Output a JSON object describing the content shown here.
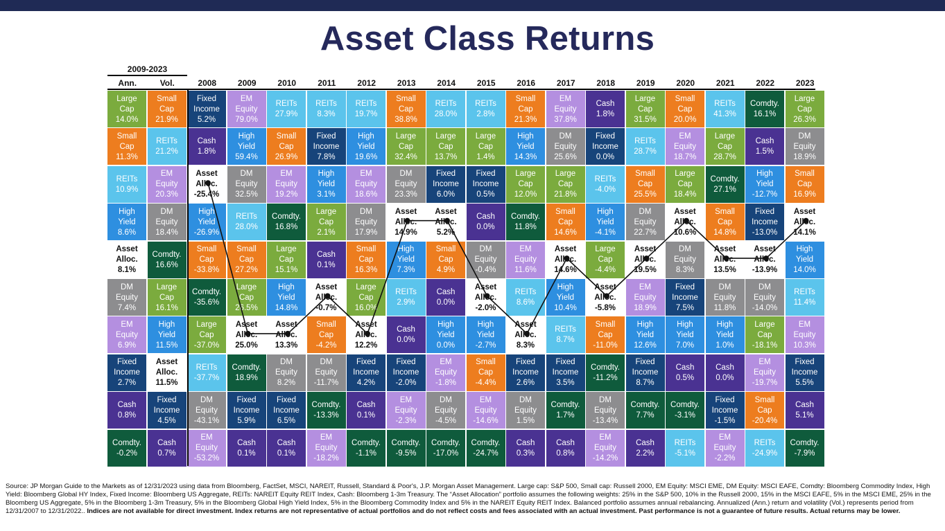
{
  "title": "Asset Class Returns",
  "colors": {
    "Large Cap": "#7bab3e",
    "Small Cap": "#ed7d1f",
    "REITs": "#5bc4ec",
    "High Yield": "#2e8fe0",
    "Asset Alloc.": "#ffffff",
    "DM Equity": "#8d8d8f",
    "EM Equity": "#b48fe0",
    "Fixed Income": "#17447a",
    "Cash": "#4a3292",
    "Comdty.": "#0f5b3c"
  },
  "chart_data": {
    "type": "table",
    "title": "Asset Class Returns",
    "summary_header": "2009-2023",
    "summary_columns": [
      "Ann.",
      "Vol."
    ],
    "year_columns": [
      "2008",
      "2009",
      "2010",
      "2011",
      "2012",
      "2013",
      "2014",
      "2015",
      "2016",
      "2017",
      "2018",
      "2019",
      "2020",
      "2021",
      "2022",
      "2023"
    ],
    "columns": [
      {
        "label": "Ann.",
        "cells": [
          [
            "Large Cap",
            "14.0%"
          ],
          [
            "Small Cap",
            "11.3%"
          ],
          [
            "REITs",
            "10.9%"
          ],
          [
            "High Yield",
            "8.6%"
          ],
          [
            "Asset Alloc.",
            "8.1%"
          ],
          [
            "DM Equity",
            "7.4%"
          ],
          [
            "EM Equity",
            "6.9%"
          ],
          [
            "Fixed Income",
            "2.7%"
          ],
          [
            "Cash",
            "0.8%"
          ],
          [
            "Comdty.",
            "-0.2%"
          ]
        ]
      },
      {
        "label": "Vol.",
        "cells": [
          [
            "Small Cap",
            "21.9%"
          ],
          [
            "REITs",
            "21.2%"
          ],
          [
            "EM Equity",
            "20.3%"
          ],
          [
            "DM Equity",
            "18.4%"
          ],
          [
            "Comdty.",
            "16.6%"
          ],
          [
            "Large Cap",
            "16.1%"
          ],
          [
            "High Yield",
            "11.5%"
          ],
          [
            "Asset Alloc.",
            "11.5%"
          ],
          [
            "Fixed Income",
            "4.5%"
          ],
          [
            "Cash",
            "0.7%"
          ]
        ]
      },
      {
        "label": "2008",
        "cells": [
          [
            "Fixed Income",
            "5.2%"
          ],
          [
            "Cash",
            "1.8%"
          ],
          [
            "Asset Alloc.",
            "-25.4%"
          ],
          [
            "High Yield",
            "-26.9%"
          ],
          [
            "Small Cap",
            "-33.8%"
          ],
          [
            "Comdty.",
            "-35.6%"
          ],
          [
            "Large Cap",
            "-37.0%"
          ],
          [
            "REITs",
            "-37.7%"
          ],
          [
            "DM Equity",
            "-43.1%"
          ],
          [
            "EM Equity",
            "-53.2%"
          ]
        ]
      },
      {
        "label": "2009",
        "cells": [
          [
            "EM Equity",
            "79.0%"
          ],
          [
            "High Yield",
            "59.4%"
          ],
          [
            "DM Equity",
            "32.5%"
          ],
          [
            "REITs",
            "28.0%"
          ],
          [
            "Small Cap",
            "27.2%"
          ],
          [
            "Large Cap",
            "26.5%"
          ],
          [
            "Asset Alloc.",
            "25.0%"
          ],
          [
            "Comdty.",
            "18.9%"
          ],
          [
            "Fixed Income",
            "5.9%"
          ],
          [
            "Cash",
            "0.1%"
          ]
        ]
      },
      {
        "label": "2010",
        "cells": [
          [
            "REITs",
            "27.9%"
          ],
          [
            "Small Cap",
            "26.9%"
          ],
          [
            "EM Equity",
            "19.2%"
          ],
          [
            "Comdty.",
            "16.8%"
          ],
          [
            "Large Cap",
            "15.1%"
          ],
          [
            "High Yield",
            "14.8%"
          ],
          [
            "Asset Alloc.",
            "13.3%"
          ],
          [
            "DM Equity",
            "8.2%"
          ],
          [
            "Fixed Income",
            "6.5%"
          ],
          [
            "Cash",
            "0.1%"
          ]
        ]
      },
      {
        "label": "2011",
        "cells": [
          [
            "REITs",
            "8.3%"
          ],
          [
            "Fixed Income",
            "7.8%"
          ],
          [
            "High Yield",
            "3.1%"
          ],
          [
            "Large Cap",
            "2.1%"
          ],
          [
            "Cash",
            "0.1%"
          ],
          [
            "Asset Alloc.",
            "-0.7%"
          ],
          [
            "Small Cap",
            "-4.2%"
          ],
          [
            "DM Equity",
            "-11.7%"
          ],
          [
            "Comdty.",
            "-13.3%"
          ],
          [
            "EM Equity",
            "-18.2%"
          ]
        ]
      },
      {
        "label": "2012",
        "cells": [
          [
            "REITs",
            "19.7%"
          ],
          [
            "High Yield",
            "19.6%"
          ],
          [
            "EM Equity",
            "18.6%"
          ],
          [
            "DM Equity",
            "17.9%"
          ],
          [
            "Small Cap",
            "16.3%"
          ],
          [
            "Large Cap",
            "16.0%"
          ],
          [
            "Asset Alloc.",
            "12.2%"
          ],
          [
            "Fixed Income",
            "4.2%"
          ],
          [
            "Cash",
            "0.1%"
          ],
          [
            "Comdty.",
            "-1.1%"
          ]
        ]
      },
      {
        "label": "2013",
        "cells": [
          [
            "Small Cap",
            "38.8%"
          ],
          [
            "Large Cap",
            "32.4%"
          ],
          [
            "DM Equity",
            "23.3%"
          ],
          [
            "Asset Alloc.",
            "14.9%"
          ],
          [
            "High Yield",
            "7.3%"
          ],
          [
            "REITs",
            "2.9%"
          ],
          [
            "Cash",
            "0.0%"
          ],
          [
            "Fixed Income",
            "-2.0%"
          ],
          [
            "EM Equity",
            "-2.3%"
          ],
          [
            "Comdty.",
            "-9.5%"
          ]
        ]
      },
      {
        "label": "2014",
        "cells": [
          [
            "REITs",
            "28.0%"
          ],
          [
            "Large Cap",
            "13.7%"
          ],
          [
            "Fixed Income",
            "6.0%"
          ],
          [
            "Asset Alloc.",
            "5.2%"
          ],
          [
            "Small Cap",
            "4.9%"
          ],
          [
            "Cash",
            "0.0%"
          ],
          [
            "High Yield",
            "0.0%"
          ],
          [
            "EM Equity",
            "-1.8%"
          ],
          [
            "DM Equity",
            "-4.5%"
          ],
          [
            "Comdty.",
            "-17.0%"
          ]
        ]
      },
      {
        "label": "2015",
        "cells": [
          [
            "REITs",
            "2.8%"
          ],
          [
            "Large Cap",
            "1.4%"
          ],
          [
            "Fixed Income",
            "0.5%"
          ],
          [
            "Cash",
            "0.0%"
          ],
          [
            "DM Equity",
            "-0.4%"
          ],
          [
            "Asset Alloc.",
            "-2.0%"
          ],
          [
            "High Yield",
            "-2.7%"
          ],
          [
            "Small Cap",
            "-4.4%"
          ],
          [
            "EM Equity",
            "-14.6%"
          ],
          [
            "Comdty.",
            "-24.7%"
          ]
        ]
      },
      {
        "label": "2016",
        "cells": [
          [
            "Small Cap",
            "21.3%"
          ],
          [
            "High Yield",
            "14.3%"
          ],
          [
            "Large Cap",
            "12.0%"
          ],
          [
            "Comdty.",
            "11.8%"
          ],
          [
            "EM Equity",
            "11.6%"
          ],
          [
            "REITs",
            "8.6%"
          ],
          [
            "Asset Alloc.",
            "8.3%"
          ],
          [
            "Fixed Income",
            "2.6%"
          ],
          [
            "DM Equity",
            "1.5%"
          ],
          [
            "Cash",
            "0.3%"
          ]
        ]
      },
      {
        "label": "2017",
        "cells": [
          [
            "EM Equity",
            "37.8%"
          ],
          [
            "DM Equity",
            "25.6%"
          ],
          [
            "Large Cap",
            "21.8%"
          ],
          [
            "Small Cap",
            "14.6%"
          ],
          [
            "Asset Alloc.",
            "14.6%"
          ],
          [
            "High Yield",
            "10.4%"
          ],
          [
            "REITs",
            "8.7%"
          ],
          [
            "Fixed Income",
            "3.5%"
          ],
          [
            "Comdty.",
            "1.7%"
          ],
          [
            "Cash",
            "0.8%"
          ]
        ]
      },
      {
        "label": "2018",
        "cells": [
          [
            "Cash",
            "1.8%"
          ],
          [
            "Fixed Income",
            "0.0%"
          ],
          [
            "REITs",
            "-4.0%"
          ],
          [
            "High Yield",
            "-4.1%"
          ],
          [
            "Large Cap",
            "-4.4%"
          ],
          [
            "Asset Alloc.",
            "-5.8%"
          ],
          [
            "Small Cap",
            "-11.0%"
          ],
          [
            "Comdty.",
            "-11.2%"
          ],
          [
            "DM Equity",
            "-13.4%"
          ],
          [
            "EM Equity",
            "-14.2%"
          ]
        ]
      },
      {
        "label": "2019",
        "cells": [
          [
            "Large Cap",
            "31.5%"
          ],
          [
            "REITs",
            "28.7%"
          ],
          [
            "Small Cap",
            "25.5%"
          ],
          [
            "DM Equity",
            "22.7%"
          ],
          [
            "Asset Alloc.",
            "19.5%"
          ],
          [
            "EM Equity",
            "18.9%"
          ],
          [
            "High Yield",
            "12.6%"
          ],
          [
            "Fixed Income",
            "8.7%"
          ],
          [
            "Comdty.",
            "7.7%"
          ],
          [
            "Cash",
            "2.2%"
          ]
        ]
      },
      {
        "label": "2020",
        "cells": [
          [
            "Small Cap",
            "20.0%"
          ],
          [
            "EM Equity",
            "18.7%"
          ],
          [
            "Large Cap",
            "18.4%"
          ],
          [
            "Asset Alloc.",
            "10.6%"
          ],
          [
            "DM Equity",
            "8.3%"
          ],
          [
            "Fixed Income",
            "7.5%"
          ],
          [
            "High Yield",
            "7.0%"
          ],
          [
            "Cash",
            "0.5%"
          ],
          [
            "Comdty.",
            "-3.1%"
          ],
          [
            "REITs",
            "-5.1%"
          ]
        ]
      },
      {
        "label": "2021",
        "cells": [
          [
            "REITs",
            "41.3%"
          ],
          [
            "Large Cap",
            "28.7%"
          ],
          [
            "Comdty.",
            "27.1%"
          ],
          [
            "Small Cap",
            "14.8%"
          ],
          [
            "Asset Alloc.",
            "13.5%"
          ],
          [
            "DM Equity",
            "11.8%"
          ],
          [
            "High Yield",
            "1.0%"
          ],
          [
            "Cash",
            "0.0%"
          ],
          [
            "Fixed Income",
            "-1.5%"
          ],
          [
            "EM Equity",
            "-2.2%"
          ]
        ]
      },
      {
        "label": "2022",
        "cells": [
          [
            "Comdty.",
            "16.1%"
          ],
          [
            "Cash",
            "1.5%"
          ],
          [
            "High Yield",
            "-12.7%"
          ],
          [
            "Fixed Income",
            "-13.0%"
          ],
          [
            "Asset Alloc.",
            "-13.9%"
          ],
          [
            "DM Equity",
            "-14.0%"
          ],
          [
            "Large Cap",
            "-18.1%"
          ],
          [
            "EM Equity",
            "-19.7%"
          ],
          [
            "Small Cap",
            "-20.4%"
          ],
          [
            "REITs",
            "-24.9%"
          ]
        ]
      },
      {
        "label": "2023",
        "cells": [
          [
            "Large Cap",
            "26.3%"
          ],
          [
            "DM Equity",
            "18.9%"
          ],
          [
            "Small Cap",
            "16.9%"
          ],
          [
            "Asset Alloc.",
            "14.1%"
          ],
          [
            "High Yield",
            "14.0%"
          ],
          [
            "REITs",
            "11.4%"
          ],
          [
            "EM Equity",
            "10.3%"
          ],
          [
            "Fixed Income",
            "5.5%"
          ],
          [
            "Cash",
            "5.1%"
          ],
          [
            "Comdty.",
            "-7.9%"
          ]
        ]
      }
    ]
  },
  "footnote": {
    "normal": "Source: JP Morgan Guide to the Markets as of 12/31/2023 using data from Bloomberg, FactSet, MSCI, NAREIT, Russell, Standard & Poor's, J.P. Morgan Asset Management. Large cap: S&P 500, Small cap: Russell 2000, EM Equity: MSCI EME, DM Equity: MSCI EAFE, Comdty: Bloomberg Commodity Index, High Yield: Bloomberg Global HY Index, Fixed Income: Bloomberg US Aggregate, REITs: NAREIT Equity REIT Index, Cash: Bloomberg 1-3m Treasury. The “Asset Allocation” portfolio assumes the following weights: 25% in the S&P 500, 10% in the Russell 2000, 15% in the MSCI EAFE, 5% in the MSCI EME, 25% in the Bloomberg US Aggregate, 5% in the Bloomberg 1-3m Treasury, 5% in the Bloomberg Global High Yield Index, 5% in the Bloomberg Commodity Index and 5% in the NAREIT Equity REIT Index. Balanced portfolio assumes annual rebalancing. Annualized (Ann.) return and volatility (Vol.) represents period from 12/31/2007 to 12/31/2022.. ",
    "bold": "Indices are not available for direct investment. Index returns are not representative of actual portfolios and do not reflect costs and fees associated with an actual investment. Past performance is not a guarantee of future results. Actual returns may be lower."
  }
}
